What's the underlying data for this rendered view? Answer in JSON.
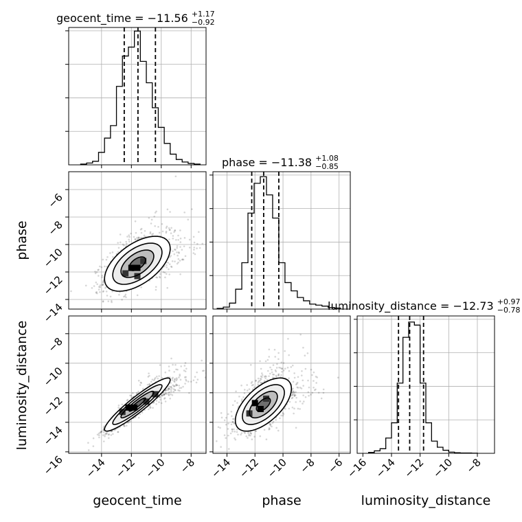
{
  "chart_data": {
    "type": "corner",
    "parameters": [
      {
        "name": "geocent_time",
        "median": -11.56,
        "plus": 1.17,
        "minus": 0.92,
        "title": "geocent_time = −11.56",
        "title_plus": "+1.17",
        "title_minus": "−0.92",
        "xlim": [
          -16.2,
          -7.0
        ],
        "ticks": [
          -14,
          -12,
          -10,
          -8
        ],
        "tick_labels": [
          "−14",
          "−12",
          "−10",
          "−8"
        ],
        "hist_bin_edges": [
          -15.4,
          -15.0,
          -14.6,
          -14.2,
          -13.8,
          -13.4,
          -13.0,
          -12.6,
          -12.2,
          -11.8,
          -11.4,
          -11.0,
          -10.6,
          -10.2,
          -9.8,
          -9.4,
          -9.0,
          -8.6,
          -8.2,
          -7.8,
          -7.4
        ],
        "hist_counts": [
          0.2,
          0.5,
          1.0,
          3.5,
          7.5,
          11.0,
          22.0,
          30.5,
          33.0,
          37.5,
          29.0,
          23.0,
          16.0,
          10.5,
          6.0,
          3.0,
          1.5,
          0.8,
          0.4,
          0.2
        ],
        "hist_ymax": 38.5
      },
      {
        "name": "phase",
        "median": -11.38,
        "plus": 1.08,
        "minus": 0.85,
        "title": "phase = −11.38",
        "title_plus": "+1.08",
        "title_minus": "−0.85",
        "xlim": [
          -15.0,
          -5.2
        ],
        "ticks": [
          -14,
          -12,
          -10,
          -8,
          -6
        ],
        "tick_labels": [
          "−14",
          "−12",
          "−10",
          "−8",
          "−6"
        ],
        "hist_bin_edges": [
          -14.7,
          -14.26,
          -13.82,
          -13.38,
          -12.94,
          -12.5,
          -12.06,
          -11.62,
          -11.18,
          -10.74,
          -10.3,
          -9.86,
          -9.42,
          -8.98,
          -8.54,
          -8.1,
          -7.66,
          -7.22,
          -6.78,
          -6.34,
          -5.9
        ],
        "hist_counts": [
          0.2,
          0.6,
          1.8,
          6.0,
          14.0,
          29.0,
          38.0,
          40.0,
          34.5,
          27.5,
          14.0,
          8.0,
          5.5,
          3.5,
          2.5,
          1.5,
          1.2,
          0.9,
          0.5,
          0.3
        ],
        "hist_ymax": 41.5
      },
      {
        "name": "luminosity_distance",
        "median": -12.73,
        "plus": 0.97,
        "minus": 0.78,
        "title": "luminosity_distance = −12.73",
        "title_plus": "+0.97",
        "title_minus": "−0.78",
        "xlim": [
          -16.4,
          -6.8
        ],
        "ticks": [
          -16,
          -14,
          -12,
          -10,
          -8
        ],
        "tick_labels": [
          "−16",
          "−14",
          "−12",
          "−10",
          "−8"
        ],
        "hist_bin_edges": [
          -15.6,
          -15.2,
          -14.8,
          -14.4,
          -14.0,
          -13.6,
          -13.2,
          -12.8,
          -12.4,
          -12.0,
          -11.6,
          -11.2,
          -10.8,
          -10.4,
          -10.0,
          -9.6,
          -9.2,
          -8.8,
          -8.4,
          -8.0
        ],
        "hist_counts": [
          0.3,
          0.8,
          1.5,
          5.0,
          10.0,
          23.0,
          38.0,
          43.0,
          42.0,
          23.0,
          10.0,
          4.0,
          2.0,
          1.0,
          0.4,
          0.2,
          0.1,
          0.1,
          0.05
        ],
        "hist_ymax": 45.0
      }
    ],
    "y_axes": {
      "phase": {
        "ylim": [
          -14.7,
          -4.7
        ],
        "ticks": [
          -6,
          -8,
          -10,
          -12,
          -14
        ],
        "tick_labels": [
          "−6",
          "−8",
          "−10",
          "−12",
          "−14"
        ]
      },
      "luminosity_distance": {
        "ylim": [
          -16.1,
          -6.8
        ],
        "ticks": [
          -8,
          -10,
          -12,
          -14,
          -16
        ],
        "tick_labels": [
          "−8",
          "−10",
          "−12",
          "−14",
          "−16"
        ]
      }
    },
    "pairs": [
      {
        "x": "geocent_time",
        "y": "phase",
        "mean": [
          -11.6,
          -11.4
        ],
        "sd": [
          1.1,
          1.0
        ],
        "rho": 0.55,
        "contour_levels_sigma": [
          0.5,
          1.0,
          1.5,
          2.0
        ],
        "hist2d_peak_cells": [
          [
            -12.0,
            -11.7
          ],
          [
            -11.6,
            -11.7
          ],
          [
            -11.6,
            -12.3
          ],
          [
            -11.2,
            -11.2
          ],
          [
            -12.4,
            -12.1
          ]
        ]
      },
      {
        "x": "geocent_time",
        "y": "luminosity_distance",
        "mean": [
          -11.6,
          -12.8
        ],
        "sd": [
          1.1,
          0.9
        ],
        "rho": 0.93,
        "contour_levels_sigma": [
          0.5,
          1.0,
          1.5,
          2.0
        ],
        "hist2d_peak_cells": [
          [
            -11.8,
            -13.0
          ],
          [
            -12.2,
            -13.0
          ],
          [
            -11.0,
            -12.6
          ],
          [
            -12.6,
            -13.3
          ],
          [
            -10.4,
            -12.1
          ]
        ]
      },
      {
        "x": "phase",
        "y": "luminosity_distance",
        "mean": [
          -11.4,
          -12.8
        ],
        "sd": [
          1.0,
          0.9
        ],
        "rho": 0.6,
        "contour_levels_sigma": [
          0.5,
          1.0,
          1.5,
          2.0
        ],
        "hist2d_peak_cells": [
          [
            -11.6,
            -13.1
          ],
          [
            -12.0,
            -12.7
          ],
          [
            -11.2,
            -12.4
          ],
          [
            -12.4,
            -13.4
          ]
        ]
      }
    ],
    "grid": true,
    "colors": {
      "line": "#000000",
      "grid": "#b0b0b0",
      "points": "#000000",
      "background": "#ffffff"
    }
  }
}
